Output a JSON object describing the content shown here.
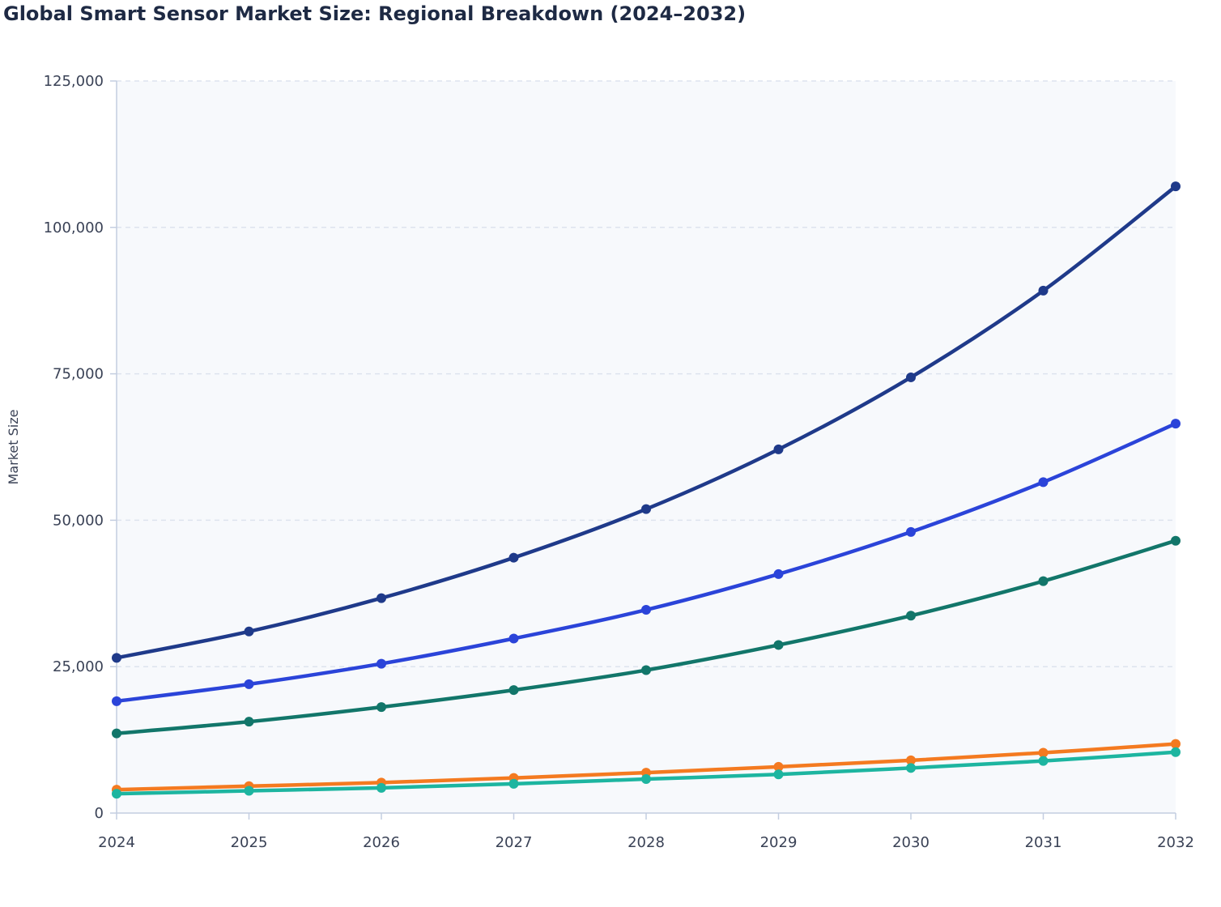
{
  "chart_data": {
    "type": "line",
    "title": "Global Smart Sensor Market Size: Regional Breakdown (2024–2032)",
    "xlabel": "",
    "ylabel": "Market Size",
    "x": [
      "2024",
      "2025",
      "2026",
      "2027",
      "2028",
      "2029",
      "2030",
      "2031",
      "2032"
    ],
    "ylim": [
      0,
      125000
    ],
    "yticks": [
      0,
      25000,
      50000,
      75000,
      100000,
      125000
    ],
    "ytick_labels": [
      "0",
      "25,000",
      "50,000",
      "75,000",
      "100,000",
      "125,000"
    ],
    "grid": true,
    "legend": "none",
    "series": [
      {
        "color": "#1f3a8a",
        "values": [
          26500,
          31000,
          36700,
          43600,
          51900,
          62100,
          74400,
          89200,
          107000
        ]
      },
      {
        "color": "#2b44d9",
        "values": [
          19100,
          22000,
          25500,
          29800,
          34700,
          40800,
          48000,
          56500,
          66500
        ]
      },
      {
        "color": "#12766a",
        "values": [
          13600,
          15600,
          18100,
          21000,
          24400,
          28700,
          33700,
          39600,
          46500
        ]
      },
      {
        "color": "#f47a20",
        "values": [
          4000,
          4600,
          5200,
          6000,
          6900,
          7900,
          9000,
          10300,
          11800
        ]
      },
      {
        "color": "#1db5a0",
        "values": [
          3300,
          3800,
          4300,
          5000,
          5800,
          6600,
          7700,
          8900,
          10400
        ]
      }
    ]
  }
}
